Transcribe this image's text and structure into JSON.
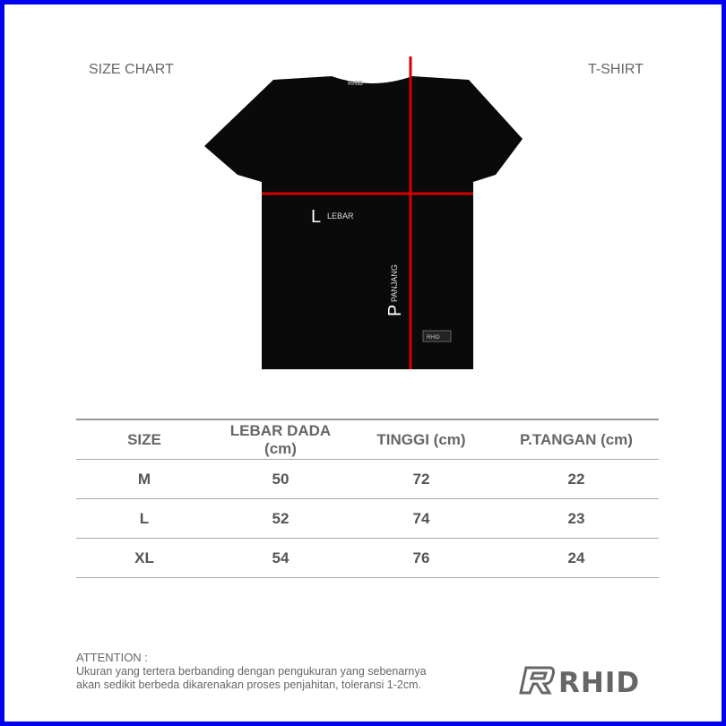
{
  "header": {
    "left": "SIZE CHART",
    "right": "T-SHIRT"
  },
  "diagram": {
    "width_letter": "L",
    "width_label": "LEBAR",
    "length_letter": "P",
    "length_label": "PANJANG",
    "tag": "RHID",
    "neck_label": "RHID",
    "line_color": "#d40000"
  },
  "table": {
    "headers": [
      "SIZE",
      "LEBAR DADA (cm)",
      "TINGGI (cm)",
      "P.TANGAN (cm)"
    ],
    "rows": [
      [
        "M",
        "50",
        "72",
        "22"
      ],
      [
        "L",
        "52",
        "74",
        "23"
      ],
      [
        "XL",
        "54",
        "76",
        "24"
      ]
    ]
  },
  "attention": {
    "title": "ATTENTION :",
    "line1": "Ukuran yang tertera berbanding dengan pengukuran yang sebenarnya",
    "line2": "akan sedikit berbeda dikarenakan proses penjahitan, toleransi 1-2cm."
  },
  "logo": {
    "text": "RHID"
  },
  "colors": {
    "border": "#0000ee",
    "shirt": "#0a0a0a",
    "lines": "#d40000"
  }
}
